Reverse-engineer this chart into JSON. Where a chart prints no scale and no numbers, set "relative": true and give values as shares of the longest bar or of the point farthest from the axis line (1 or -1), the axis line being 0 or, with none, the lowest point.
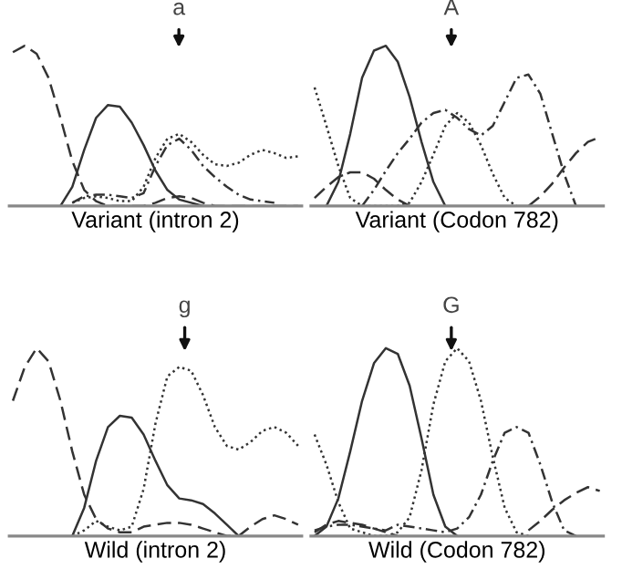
{
  "chart_data": [
    {
      "type": "line",
      "relative": true,
      "xlabel": "Variant (intron 2)",
      "annotations": [
        "a"
      ],
      "tick_labels": false,
      "categories": [
        null,
        null,
        null,
        null,
        null,
        null,
        null,
        null,
        null,
        null,
        null,
        null,
        null,
        null,
        null,
        null,
        null,
        null,
        null,
        null,
        null,
        null,
        null,
        null,
        null
      ],
      "series": [
        {
          "color": "#333333",
          "line_style": "dashed",
          "values": [
            0.96,
            1.0,
            0.95,
            0.8,
            0.55,
            0.28,
            0.1,
            0.03,
            0.0,
            0.0,
            0.0,
            0.0,
            0.02,
            0.05,
            0.06,
            0.05,
            0.02,
            0.0,
            0.0,
            0.0,
            0.0,
            0.0,
            0.0,
            0.0,
            0.0
          ]
        },
        {
          "color": "#333333",
          "line_style": "solid",
          "values": [
            null,
            null,
            null,
            null,
            0.0,
            0.12,
            0.35,
            0.55,
            0.63,
            0.62,
            0.52,
            0.38,
            0.22,
            0.1,
            0.04,
            0.02,
            0.0,
            null,
            null,
            null,
            null,
            null,
            null,
            null,
            null
          ]
        },
        {
          "color": "#333333",
          "line_style": "dotted",
          "values": [
            null,
            null,
            null,
            null,
            null,
            0.02,
            0.05,
            0.06,
            0.05,
            0.03,
            0.03,
            0.12,
            0.3,
            0.42,
            0.45,
            0.4,
            0.32,
            0.26,
            0.25,
            0.27,
            0.32,
            0.35,
            0.33,
            0.3,
            0.31
          ]
        },
        {
          "color": "#333333",
          "line_style": "dashdot",
          "values": [
            null,
            null,
            null,
            null,
            null,
            0.02,
            0.06,
            0.07,
            0.07,
            0.06,
            0.05,
            0.08,
            0.25,
            0.38,
            0.42,
            0.35,
            0.25,
            0.18,
            0.12,
            0.07,
            0.04,
            0.03,
            0.02,
            null,
            null
          ]
        }
      ]
    },
    {
      "type": "line",
      "relative": true,
      "xlabel": "Variant (Codon 782)",
      "annotations": [
        "A"
      ],
      "tick_labels": false,
      "categories": [
        null,
        null,
        null,
        null,
        null,
        null,
        null,
        null,
        null,
        null,
        null,
        null,
        null,
        null,
        null,
        null,
        null,
        null,
        null,
        null,
        null,
        null,
        null,
        null,
        null
      ],
      "series": [
        {
          "color": "#333333",
          "line_style": "solid",
          "values": [
            null,
            0.0,
            0.15,
            0.45,
            0.8,
            0.97,
            1.0,
            0.9,
            0.68,
            0.4,
            0.15,
            0.0,
            null,
            null,
            null,
            null,
            null,
            null,
            null,
            null,
            null,
            null,
            null,
            null,
            null
          ]
        },
        {
          "color": "#333333",
          "line_style": "dotted",
          "values": [
            0.74,
            0.5,
            0.25,
            0.05,
            0.0,
            0.0,
            0.0,
            0.0,
            0.02,
            0.15,
            0.32,
            0.5,
            0.58,
            0.52,
            0.38,
            0.2,
            0.05,
            0.0,
            null,
            null,
            null,
            null,
            null,
            null,
            null
          ]
        },
        {
          "color": "#333333",
          "line_style": "dashdot",
          "values": [
            null,
            null,
            null,
            null,
            0.0,
            0.1,
            0.22,
            0.33,
            0.42,
            0.52,
            0.58,
            0.6,
            0.55,
            0.48,
            0.44,
            0.5,
            0.65,
            0.8,
            0.82,
            0.7,
            0.45,
            0.2,
            0.0,
            null,
            null
          ]
        },
        {
          "color": "#333333",
          "line_style": "dashed",
          "values": [
            0.05,
            0.12,
            0.18,
            0.21,
            0.21,
            0.17,
            0.1,
            0.04,
            0.0,
            null,
            null,
            null,
            null,
            null,
            null,
            null,
            null,
            null,
            0.0,
            0.06,
            0.14,
            0.24,
            0.33,
            0.4,
            0.43
          ]
        }
      ]
    },
    {
      "type": "line",
      "relative": true,
      "xlabel": "Wild (intron 2)",
      "annotations": [
        "g"
      ],
      "tick_labels": false,
      "categories": [
        null,
        null,
        null,
        null,
        null,
        null,
        null,
        null,
        null,
        null,
        null,
        null,
        null,
        null,
        null,
        null,
        null,
        null,
        null,
        null,
        null,
        null,
        null,
        null,
        null
      ],
      "series": [
        {
          "color": "#333333",
          "line_style": "dashed",
          "values": [
            0.72,
            0.9,
            1.0,
            0.93,
            0.72,
            0.45,
            0.22,
            0.09,
            0.04,
            0.02,
            0.02,
            0.05,
            0.06,
            0.07,
            0.07,
            0.06,
            0.04,
            0.02,
            0.0,
            0.0,
            0.05,
            0.09,
            0.11,
            0.09,
            0.06
          ]
        },
        {
          "color": "#333333",
          "line_style": "solid",
          "values": [
            null,
            null,
            null,
            null,
            null,
            0.0,
            0.15,
            0.4,
            0.58,
            0.64,
            0.63,
            0.54,
            0.4,
            0.27,
            0.2,
            0.19,
            0.17,
            0.12,
            0.06,
            0.0,
            null,
            null,
            null,
            null,
            null
          ]
        },
        {
          "color": "#333333",
          "line_style": "dotted",
          "values": [
            null,
            null,
            null,
            null,
            null,
            0.0,
            0.03,
            0.08,
            0.05,
            0.03,
            0.05,
            0.25,
            0.6,
            0.85,
            0.9,
            0.88,
            0.75,
            0.58,
            0.48,
            0.46,
            0.5,
            0.56,
            0.58,
            0.55,
            0.48
          ]
        }
      ]
    },
    {
      "type": "line",
      "relative": true,
      "xlabel": "Wild (Codon 782)",
      "annotations": [
        "G"
      ],
      "tick_labels": false,
      "categories": [
        null,
        null,
        null,
        null,
        null,
        null,
        null,
        null,
        null,
        null,
        null,
        null,
        null,
        null,
        null,
        null,
        null,
        null,
        null,
        null,
        null,
        null,
        null,
        null,
        null
      ],
      "series": [
        {
          "color": "#333333",
          "line_style": "solid",
          "values": [
            0.0,
            0.05,
            0.2,
            0.45,
            0.72,
            0.92,
            1.0,
            0.97,
            0.8,
            0.52,
            0.22,
            0.05,
            0.0,
            null,
            null,
            null,
            null,
            null,
            null,
            null,
            null,
            null,
            null,
            null,
            null
          ]
        },
        {
          "color": "#333333",
          "line_style": "dotted",
          "values": [
            0.54,
            0.38,
            0.18,
            0.04,
            0.02,
            0.0,
            0.0,
            0.02,
            0.1,
            0.35,
            0.7,
            0.93,
            1.0,
            0.93,
            0.72,
            0.42,
            0.15,
            0.02,
            0.0,
            null,
            null,
            null,
            null,
            null,
            null
          ]
        },
        {
          "color": "#333333",
          "line_style": "dashdot",
          "values": [
            0.03,
            0.05,
            0.06,
            0.06,
            0.05,
            0.04,
            0.03,
            0.06,
            0.05,
            0.04,
            0.03,
            0.02,
            0.04,
            0.1,
            0.22,
            0.4,
            0.55,
            0.58,
            0.55,
            0.38,
            0.18,
            0.03,
            0.0,
            null,
            null
          ]
        },
        {
          "color": "#333333",
          "line_style": "dashed",
          "values": [
            0.02,
            0.06,
            0.08,
            0.07,
            0.06,
            0.04,
            0.02,
            0.0,
            null,
            null,
            null,
            null,
            null,
            null,
            null,
            null,
            null,
            null,
            0.03,
            0.08,
            0.14,
            0.19,
            0.23,
            0.26,
            0.24
          ]
        }
      ]
    }
  ]
}
